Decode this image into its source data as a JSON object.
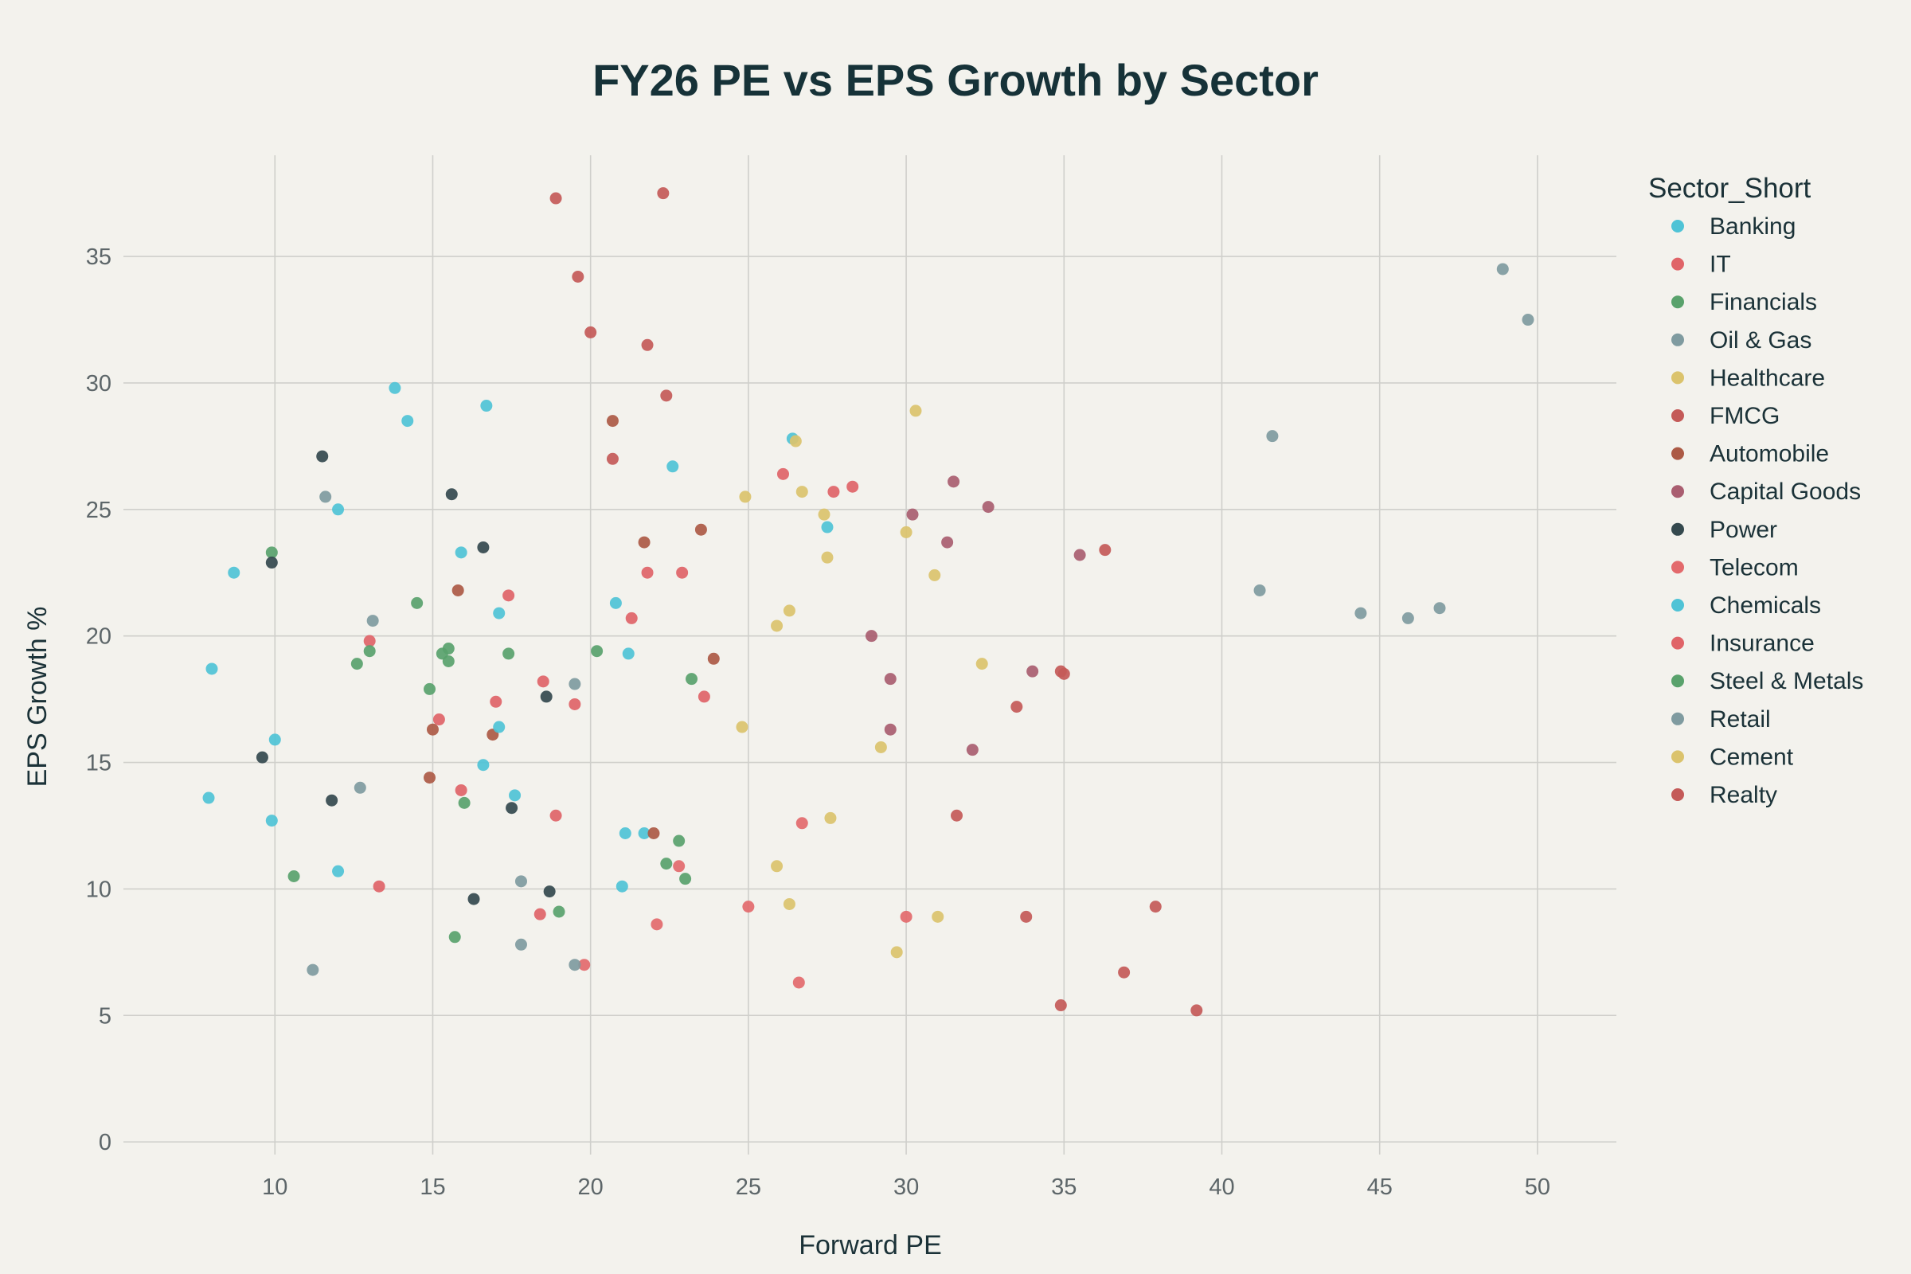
{
  "chart_data": {
    "type": "scatter",
    "title": "FY26 PE vs EPS Growth by Sector",
    "xlabel": "Forward PE",
    "ylabel": "EPS Growth %",
    "xlim": [
      5.2,
      52.5
    ],
    "ylim": [
      -0.5,
      39
    ],
    "x_ticks": [
      10,
      15,
      20,
      25,
      30,
      35,
      40,
      45,
      50
    ],
    "y_ticks": [
      0,
      5,
      10,
      15,
      20,
      25,
      30,
      35
    ],
    "grid": true,
    "legend_title": "Sector_Short",
    "legend_position": "right",
    "series": [
      {
        "name": "Banking",
        "color": "#4fc3d6",
        "points": [
          [
            7.9,
            13.6
          ],
          [
            8.0,
            18.7
          ],
          [
            8.7,
            22.5
          ],
          [
            9.9,
            12.7
          ],
          [
            10.0,
            15.9
          ],
          [
            12.0,
            10.7
          ],
          [
            12.0,
            25.0
          ],
          [
            13.8,
            29.8
          ],
          [
            14.2,
            28.5
          ],
          [
            15.9,
            23.3
          ],
          [
            16.6,
            14.9
          ],
          [
            16.7,
            29.1
          ],
          [
            17.1,
            20.9
          ],
          [
            17.6,
            13.7
          ],
          [
            20.8,
            21.3
          ],
          [
            21.1,
            12.2
          ],
          [
            21.2,
            19.3
          ],
          [
            21.0,
            10.1
          ],
          [
            21.7,
            12.2
          ],
          [
            22.6,
            26.7
          ],
          [
            26.4,
            27.8
          ],
          [
            27.5,
            24.3
          ]
        ]
      },
      {
        "name": "IT",
        "color": "#e06468",
        "points": [
          [
            13.0,
            19.8
          ],
          [
            13.3,
            10.1
          ],
          [
            15.2,
            16.7
          ],
          [
            15.9,
            13.9
          ],
          [
            17.0,
            17.4
          ],
          [
            17.4,
            21.6
          ],
          [
            18.5,
            18.2
          ],
          [
            18.9,
            12.9
          ],
          [
            19.5,
            17.3
          ],
          [
            21.3,
            20.7
          ],
          [
            21.8,
            22.5
          ],
          [
            22.9,
            22.5
          ],
          [
            23.6,
            17.6
          ],
          [
            26.1,
            26.4
          ],
          [
            27.7,
            25.7
          ],
          [
            28.3,
            25.9
          ]
        ]
      },
      {
        "name": "Financials",
        "color": "#59a26c",
        "points": [
          [
            9.9,
            23.3
          ],
          [
            10.6,
            10.5
          ],
          [
            12.6,
            18.9
          ],
          [
            13.0,
            19.4
          ],
          [
            14.5,
            21.3
          ],
          [
            14.9,
            17.9
          ],
          [
            15.3,
            19.3
          ],
          [
            15.5,
            19.0
          ],
          [
            15.5,
            19.5
          ],
          [
            15.7,
            8.1
          ],
          [
            16.0,
            13.4
          ],
          [
            17.4,
            19.3
          ],
          [
            19.0,
            9.1
          ],
          [
            20.2,
            19.4
          ],
          [
            22.4,
            11.0
          ],
          [
            22.8,
            11.9
          ],
          [
            23.0,
            10.4
          ],
          [
            23.2,
            18.3
          ]
        ]
      },
      {
        "name": "Oil & Gas",
        "color": "#7f9ba0",
        "points": [
          [
            11.6,
            25.5
          ],
          [
            13.1,
            20.6
          ],
          [
            17.8,
            10.3
          ],
          [
            17.8,
            7.8
          ],
          [
            19.5,
            18.1
          ],
          [
            41.2,
            21.8
          ],
          [
            41.6,
            27.9
          ],
          [
            44.4,
            20.9
          ],
          [
            45.9,
            20.7
          ],
          [
            46.9,
            21.1
          ],
          [
            48.9,
            34.5
          ],
          [
            49.7,
            32.5
          ]
        ]
      },
      {
        "name": "Healthcare",
        "color": "#dbc36c",
        "points": [
          [
            24.8,
            16.4
          ],
          [
            24.9,
            25.5
          ],
          [
            25.9,
            20.4
          ],
          [
            25.9,
            10.9
          ],
          [
            26.3,
            21.0
          ],
          [
            26.3,
            9.4
          ],
          [
            26.5,
            27.7
          ],
          [
            26.7,
            25.7
          ],
          [
            27.4,
            24.8
          ],
          [
            27.5,
            23.1
          ],
          [
            27.6,
            12.8
          ],
          [
            29.2,
            15.6
          ],
          [
            29.7,
            7.5
          ],
          [
            30.0,
            24.1
          ],
          [
            30.3,
            28.9
          ],
          [
            30.9,
            22.4
          ],
          [
            31.0,
            8.9
          ],
          [
            32.4,
            18.9
          ]
        ]
      },
      {
        "name": "FMCG",
        "color": "#c45a58",
        "points": [
          [
            18.9,
            37.3
          ],
          [
            19.6,
            34.2
          ],
          [
            20.0,
            32.0
          ],
          [
            20.7,
            27.0
          ],
          [
            21.8,
            31.5
          ],
          [
            22.3,
            37.5
          ],
          [
            22.4,
            29.5
          ],
          [
            33.5,
            17.2
          ],
          [
            33.8,
            8.9
          ],
          [
            34.9,
            18.6
          ],
          [
            35.0,
            18.5
          ],
          [
            36.3,
            23.4
          ]
        ]
      },
      {
        "name": "Automobile",
        "color": "#ac5a45",
        "points": [
          [
            14.9,
            14.4
          ],
          [
            15.0,
            16.3
          ],
          [
            15.8,
            21.8
          ],
          [
            16.9,
            16.1
          ],
          [
            20.7,
            28.5
          ],
          [
            21.7,
            23.7
          ],
          [
            22.0,
            12.2
          ],
          [
            23.5,
            24.2
          ],
          [
            23.9,
            19.1
          ]
        ]
      },
      {
        "name": "Capital Goods",
        "color": "#a95e70",
        "points": [
          [
            28.9,
            20.0
          ],
          [
            29.5,
            18.3
          ],
          [
            29.5,
            16.3
          ],
          [
            30.2,
            24.8
          ],
          [
            31.3,
            23.7
          ],
          [
            31.5,
            26.1
          ],
          [
            32.1,
            15.5
          ],
          [
            32.6,
            25.1
          ],
          [
            34.0,
            18.6
          ],
          [
            35.5,
            23.2
          ]
        ]
      },
      {
        "name": "Power",
        "color": "#34494e",
        "points": [
          [
            9.6,
            15.2
          ],
          [
            9.9,
            22.9
          ],
          [
            11.5,
            27.1
          ],
          [
            11.8,
            13.5
          ],
          [
            15.6,
            25.6
          ],
          [
            16.3,
            9.6
          ],
          [
            16.6,
            23.5
          ],
          [
            17.5,
            13.2
          ],
          [
            18.6,
            17.6
          ],
          [
            18.7,
            9.9
          ]
        ]
      },
      {
        "name": "Telecom",
        "color": "#e36a6c",
        "points": [
          [
            19.8,
            7.0
          ],
          [
            22.1,
            8.6
          ],
          [
            22.8,
            10.9
          ],
          [
            25.0,
            9.3
          ],
          [
            26.6,
            6.3
          ],
          [
            26.7,
            12.6
          ],
          [
            30.0,
            8.9
          ]
        ]
      },
      {
        "name": "Chemicals",
        "color": "#4fc3d6",
        "points": [
          [
            17.1,
            16.4
          ]
        ]
      },
      {
        "name": "Insurance",
        "color": "#e06468",
        "points": [
          [
            18.4,
            9.0
          ]
        ]
      },
      {
        "name": "Steel & Metals",
        "color": "#59a26c",
        "points": []
      },
      {
        "name": "Retail",
        "color": "#7f9ba0",
        "points": [
          [
            11.2,
            6.8
          ],
          [
            12.7,
            14.0
          ],
          [
            19.5,
            7.0
          ]
        ]
      },
      {
        "name": "Cement",
        "color": "#dbc36c",
        "points": []
      },
      {
        "name": "Realty",
        "color": "#c45a58",
        "points": [
          [
            31.6,
            12.9
          ],
          [
            34.9,
            5.4
          ],
          [
            36.9,
            6.7
          ],
          [
            37.9,
            9.3
          ],
          [
            39.2,
            5.2
          ]
        ]
      }
    ]
  }
}
